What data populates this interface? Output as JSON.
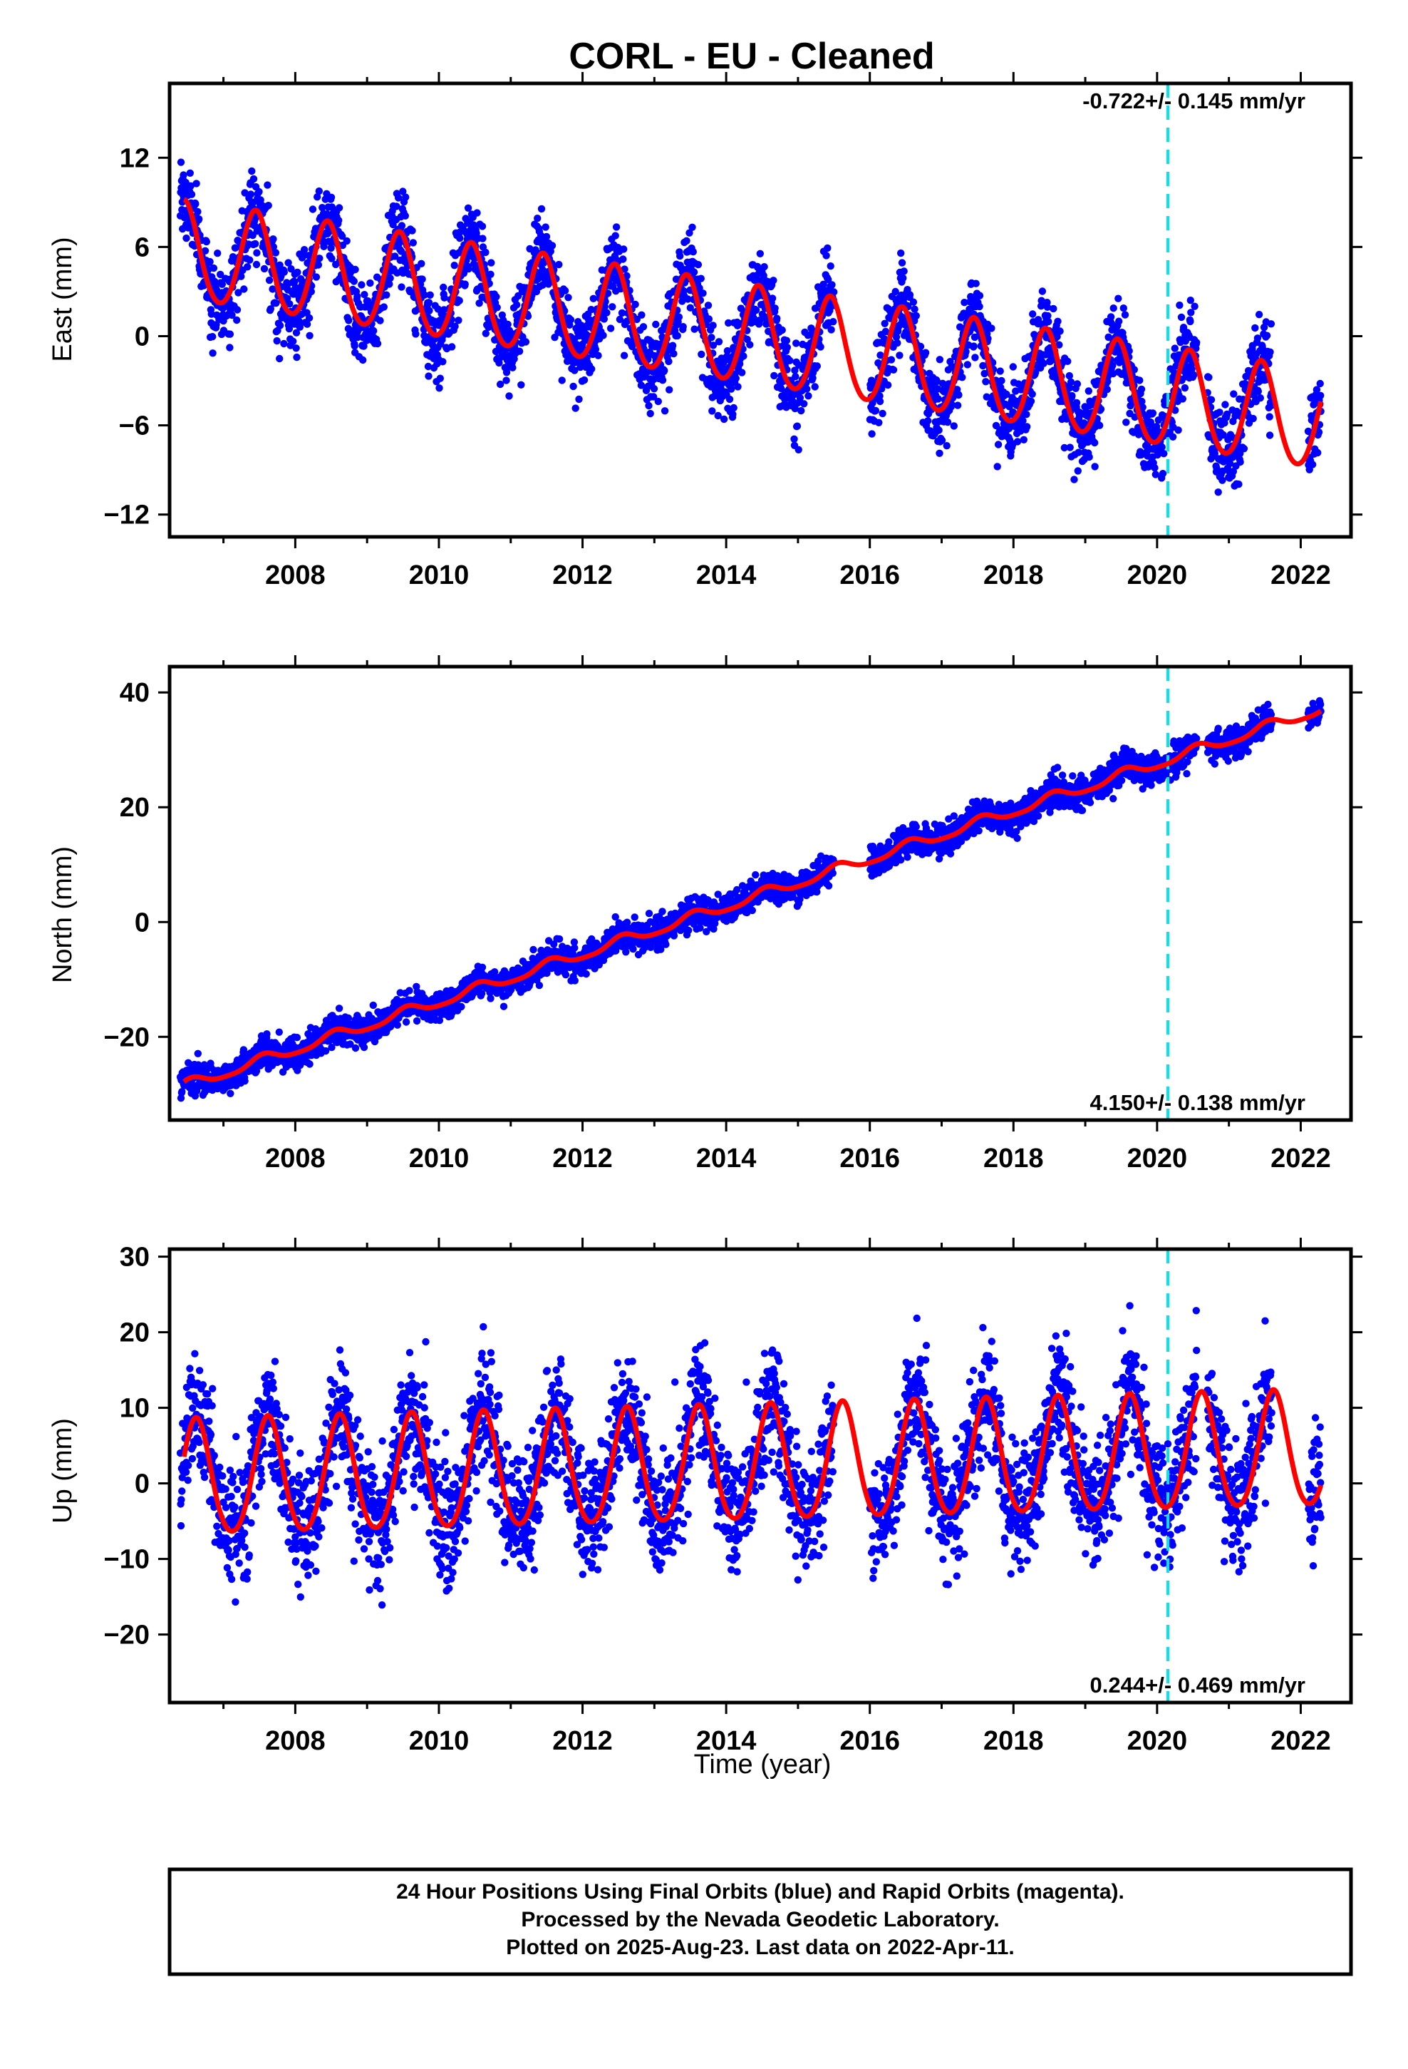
{
  "title": "CORL  - EU - Cleaned",
  "colors": {
    "observations": "#0000ff",
    "model": "#ff0000",
    "event_line": "#00e5ee",
    "frame": "#000000"
  },
  "chart_data": [
    {
      "type": "scatter",
      "component": "east",
      "ylabel": "East (mm)",
      "xlabel": "",
      "xlim": [
        2006.25,
        2022.7
      ],
      "ylim": [
        -13.5,
        17
      ],
      "xticks": [
        2008,
        2010,
        2012,
        2014,
        2016,
        2018,
        2020,
        2022
      ],
      "yticks": [
        -12,
        -6,
        0,
        6,
        12
      ],
      "rate_text": "-0.722+/- 0.145 mm/yr",
      "rate_position": "top-right",
      "data_range": [
        2006.4,
        2022.28
      ],
      "gap": [
        2015.5,
        2016.0
      ],
      "model": {
        "offset": 5.6,
        "trend_mm_per_yr": -0.722,
        "t0": 2006.45,
        "amplitude": 3.3,
        "peak_phase_yr": 0.45,
        "semiannual_amplitude": 0.3
      },
      "scatter_sigma": 1.4,
      "series": [
        {
          "name": "Final Orbits (blue)",
          "kind": "points"
        },
        {
          "name": "",
          "kind": "model-curve"
        }
      ],
      "event_line_x": 2020.15
    },
    {
      "type": "scatter",
      "component": "north",
      "ylabel": "North (mm)",
      "xlabel": "",
      "xlim": [
        2006.25,
        2022.7
      ],
      "ylim": [
        -34.5,
        44.5
      ],
      "xticks": [
        2008,
        2010,
        2012,
        2014,
        2016,
        2018,
        2020,
        2022
      ],
      "yticks": [
        -20,
        0,
        20,
        40
      ],
      "rate_text": "4.150+/- 0.138 mm/yr",
      "rate_position": "bottom-right",
      "data_range": [
        2006.4,
        2022.28
      ],
      "gap": [
        2015.5,
        2016.0
      ],
      "model": {
        "offset": -28.6,
        "trend_mm_per_yr": 4.15,
        "t0": 2006.45,
        "amplitude": 0.9,
        "peak_phase_yr": 0.55,
        "semiannual_amplitude": 0.2
      },
      "scatter_sigma": 1.3,
      "series": [
        {
          "name": "Final Orbits (blue)",
          "kind": "points"
        },
        {
          "name": "",
          "kind": "model-curve"
        }
      ],
      "event_line_x": 2020.15
    },
    {
      "type": "scatter",
      "component": "up",
      "ylabel": "Up (mm)",
      "xlabel": "Time (year)",
      "xlim": [
        2006.25,
        2022.7
      ],
      "ylim": [
        -29,
        31
      ],
      "xticks": [
        2008,
        2010,
        2012,
        2014,
        2016,
        2018,
        2020,
        2022
      ],
      "yticks": [
        -20,
        -10,
        0,
        10,
        20,
        30
      ],
      "rate_text": "0.244+/- 0.469 mm/yr",
      "rate_position": "bottom-right",
      "data_range": [
        2006.4,
        2022.28
      ],
      "gap": [
        2015.5,
        2016.0
      ],
      "model": {
        "offset": 0.3,
        "trend_mm_per_yr": 0.244,
        "t0": 2006.45,
        "amplitude": 7.6,
        "peak_phase_yr": 0.62,
        "semiannual_amplitude": 0.8
      },
      "scatter_sigma": 4.0,
      "series": [
        {
          "name": "Final Orbits (blue)",
          "kind": "points"
        },
        {
          "name": "",
          "kind": "model-curve"
        }
      ],
      "event_line_x": 2020.15
    }
  ],
  "caption": {
    "line1": "24 Hour Positions Using Final Orbits (blue) and Rapid Orbits (magenta).",
    "line2": "Processed by the Nevada Geodetic Laboratory.",
    "line3": "Plotted on 2025-Aug-23. Last data on 2022-Apr-11."
  }
}
